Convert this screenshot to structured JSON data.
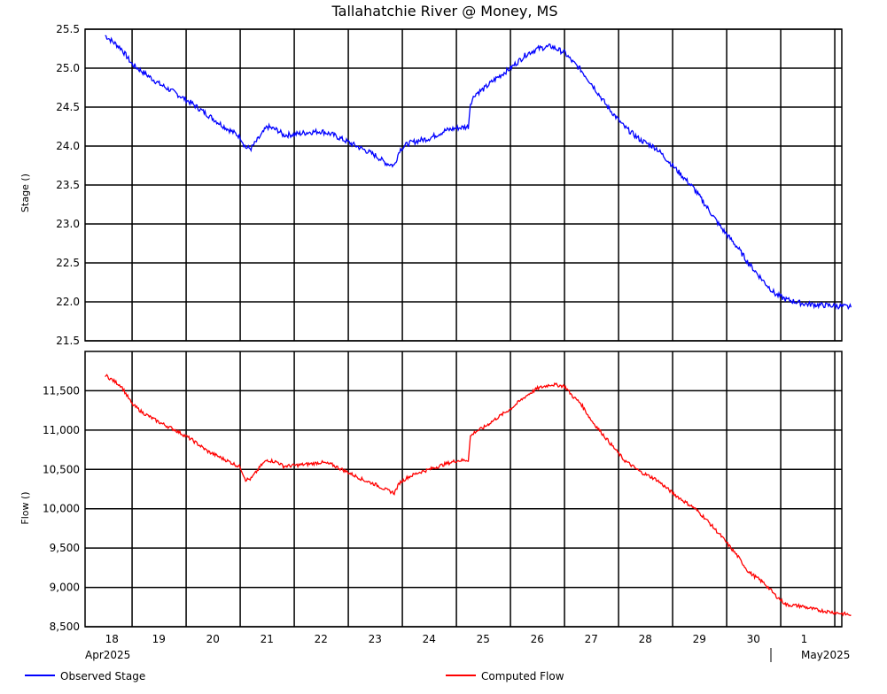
{
  "chart_data": [
    {
      "type": "line",
      "title": "Tallahatchie River @ Money, MS",
      "ylabel": "Stage ()",
      "ylim": [
        21.5,
        25.5
      ],
      "yticks": [
        "25.5",
        "25.0",
        "24.5",
        "24.0",
        "23.5",
        "23.0",
        "22.5",
        "22.0",
        "21.5"
      ],
      "ytick_values": [
        25.5,
        25.0,
        24.5,
        24.0,
        23.5,
        23.0,
        22.5,
        22.0,
        21.5
      ],
      "grid": true,
      "series": [
        {
          "name": "Observed Stage",
          "color": "#0000ff",
          "x": [
            18.0,
            18.3,
            18.5,
            18.7,
            19.0,
            19.3,
            19.6,
            19.9,
            20.2,
            20.5,
            20.6,
            20.7,
            20.9,
            21.0,
            21.2,
            21.3,
            21.5,
            21.8,
            22.0,
            22.2,
            22.5,
            22.8,
            23.0,
            23.2,
            23.35,
            23.45,
            23.6,
            23.8,
            24.0,
            24.3,
            24.5,
            24.72,
            24.76,
            24.85,
            25.0,
            25.2,
            25.5,
            25.8,
            26.0,
            26.25,
            26.5,
            26.65,
            26.8,
            27.0,
            27.3,
            27.6,
            27.9,
            28.2,
            28.5,
            28.7,
            28.9,
            29.1,
            29.4,
            29.7,
            29.9,
            30.2,
            30.4,
            30.6,
            30.9,
            31.0,
            31.2,
            31.5,
            31.8
          ],
          "y": [
            25.42,
            25.25,
            25.05,
            24.95,
            24.8,
            24.68,
            24.55,
            24.4,
            24.25,
            24.12,
            23.98,
            23.97,
            24.15,
            24.25,
            24.2,
            24.14,
            24.15,
            24.18,
            24.19,
            24.15,
            24.05,
            23.95,
            23.88,
            23.78,
            23.75,
            23.95,
            24.03,
            24.07,
            24.1,
            24.2,
            24.23,
            24.25,
            24.55,
            24.67,
            24.73,
            24.85,
            25.0,
            25.18,
            25.25,
            25.28,
            25.2,
            25.08,
            24.98,
            24.8,
            24.5,
            24.25,
            24.08,
            23.97,
            23.75,
            23.6,
            23.45,
            23.25,
            22.95,
            22.7,
            22.5,
            22.25,
            22.1,
            22.03,
            21.98,
            21.97,
            21.96,
            21.95,
            21.93
          ]
        }
      ]
    },
    {
      "type": "line",
      "ylabel": "Flow ()",
      "ylim": [
        8500,
        12000
      ],
      "yticks": [
        "11,500",
        "11,000",
        "10,500",
        "10,000",
        "9,500",
        "9,000",
        "8,500"
      ],
      "ytick_values": [
        11500,
        11000,
        10500,
        10000,
        9500,
        9000,
        8500
      ],
      "grid": true,
      "xticks": [
        "18",
        "19",
        "20",
        "21",
        "22",
        "23",
        "24",
        "25",
        "26",
        "27",
        "28",
        "29",
        "30",
        "1"
      ],
      "xtick_values": [
        18,
        19,
        20,
        21,
        22,
        23,
        24,
        25,
        26,
        27,
        28,
        29,
        30,
        31
      ],
      "x_month_labels": [
        "Apr2025",
        "May2025"
      ],
      "series": [
        {
          "name": "Computed Flow",
          "color": "#ff0000",
          "x": [
            18.0,
            18.3,
            18.5,
            18.7,
            19.0,
            19.3,
            19.6,
            19.9,
            20.2,
            20.5,
            20.6,
            20.7,
            20.9,
            21.0,
            21.2,
            21.3,
            21.5,
            21.8,
            22.0,
            22.2,
            22.5,
            22.8,
            23.0,
            23.2,
            23.35,
            23.45,
            23.6,
            23.8,
            24.0,
            24.3,
            24.5,
            24.72,
            24.76,
            24.85,
            25.0,
            25.2,
            25.5,
            25.8,
            26.0,
            26.25,
            26.5,
            26.65,
            26.8,
            27.0,
            27.3,
            27.6,
            27.9,
            28.2,
            28.5,
            28.7,
            28.9,
            29.1,
            29.4,
            29.7,
            29.9,
            30.2,
            30.4,
            30.6,
            30.9,
            31.0,
            31.2,
            31.5,
            31.8
          ],
          "y": [
            11700,
            11560,
            11330,
            11220,
            11100,
            11000,
            10880,
            10730,
            10630,
            10530,
            10370,
            10380,
            10560,
            10620,
            10590,
            10540,
            10550,
            10570,
            10590,
            10560,
            10460,
            10360,
            10310,
            10240,
            10200,
            10330,
            10400,
            10460,
            10500,
            10570,
            10610,
            10620,
            10920,
            10980,
            11030,
            11130,
            11270,
            11440,
            11530,
            11580,
            11560,
            11430,
            11340,
            11120,
            10870,
            10620,
            10470,
            10370,
            10200,
            10100,
            10010,
            9880,
            9650,
            9400,
            9200,
            9050,
            8900,
            8780,
            8760,
            8740,
            8710,
            8680,
            8650
          ]
        }
      ]
    }
  ],
  "legend": [
    {
      "label": "Observed Stage",
      "color": "#0000ff"
    },
    {
      "label": "Computed Flow",
      "color": "#ff0000"
    }
  ]
}
